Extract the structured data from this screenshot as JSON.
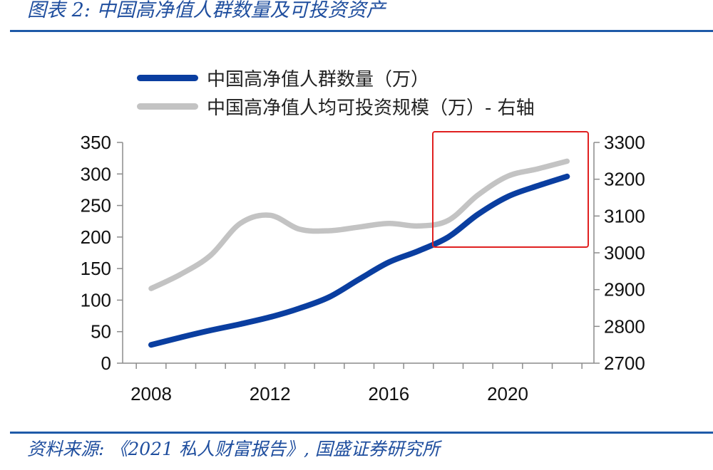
{
  "header": {
    "title": "图表 2:  中国高净值人群数量及可投资资产"
  },
  "footer": {
    "source": "资料来源:  《2021 私人财富报告》,  国盛证券研究所"
  },
  "legend": {
    "items": [
      {
        "label": "中国高净值人群数量（万）",
        "color": "#0a3ea0"
      },
      {
        "label": "中国高净值人均可投资规模（万）- 右轴",
        "color": "#c3c3c3"
      }
    ]
  },
  "chart_data": {
    "type": "line",
    "x_ticks": [
      "2008",
      "2012",
      "2016",
      "2020"
    ],
    "ylim_left": [
      0,
      350
    ],
    "ylim_right": [
      2700,
      3300
    ],
    "y_ticks_left": [
      "0",
      "50",
      "100",
      "150",
      "200",
      "250",
      "300",
      "350"
    ],
    "y_ticks_right": [
      "2700",
      "2800",
      "2900",
      "3000",
      "3100",
      "3200",
      "3300"
    ],
    "grid": false,
    "legend_position": "top",
    "series": [
      {
        "name": "中国高净值人群数量（万）",
        "axis": "left",
        "color": "#0a3ea0",
        "points": [
          [
            2008,
            29
          ],
          [
            2009,
            41
          ],
          [
            2010,
            52
          ],
          [
            2011,
            62
          ],
          [
            2012,
            73
          ],
          [
            2013,
            87
          ],
          [
            2014,
            105
          ],
          [
            2015,
            133
          ],
          [
            2016,
            160
          ],
          [
            2017,
            178
          ],
          [
            2018,
            200
          ],
          [
            2019,
            236
          ],
          [
            2020,
            264
          ],
          [
            2021,
            281
          ],
          [
            2022,
            296
          ]
        ]
      },
      {
        "name": "中国高净值人均可投资规模（万）- 右轴",
        "axis": "right",
        "color": "#c3c3c3",
        "points": [
          [
            2008,
            2903
          ],
          [
            2009,
            2942
          ],
          [
            2010,
            2993
          ],
          [
            2011,
            3080
          ],
          [
            2012,
            3102
          ],
          [
            2013,
            3064
          ],
          [
            2014,
            3060
          ],
          [
            2015,
            3070
          ],
          [
            2016,
            3080
          ],
          [
            2017,
            3073
          ],
          [
            2018,
            3088
          ],
          [
            2019,
            3157
          ],
          [
            2020,
            3208
          ],
          [
            2021,
            3228
          ],
          [
            2022,
            3249
          ]
        ]
      }
    ],
    "annotation": {
      "type": "highlight-box",
      "color": "#e02020",
      "x_range": [
        2017.5,
        2022.3
      ]
    }
  }
}
